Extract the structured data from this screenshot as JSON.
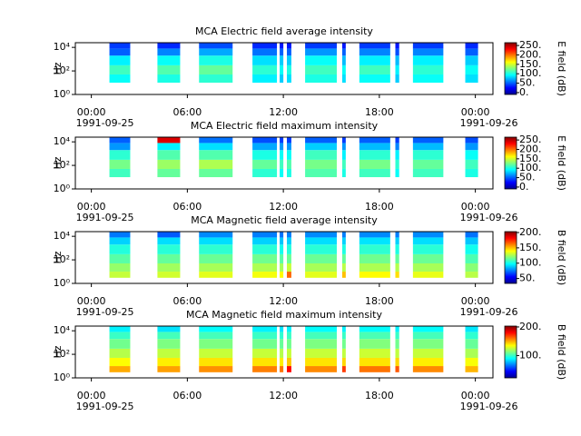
{
  "chart_data": [
    {
      "type": "spectrogram",
      "title": "MCA  Electric field average intensity",
      "ylabel": "Hz",
      "zlabel": "E field (dB)",
      "xlim": [
        -1,
        25.1
      ],
      "xticks": [
        {
          "value": 0,
          "label": "00:00"
        },
        {
          "value": 6,
          "label": "06:00"
        },
        {
          "value": 12,
          "label": "12:00"
        },
        {
          "value": 18,
          "label": "18:00"
        },
        {
          "value": 24,
          "label": "00:00"
        }
      ],
      "xdates": [
        {
          "value": 0,
          "label": "1991-09-25"
        },
        {
          "value": 24,
          "label": "1991-09-26"
        }
      ],
      "ylim": [
        1,
        25000
      ],
      "log_y": true,
      "yticks": [
        {
          "value": 1,
          "label": "10⁰"
        },
        {
          "value": 100,
          "label": "10²"
        },
        {
          "value": 10000,
          "label": "10⁴"
        }
      ],
      "zlim": [
        -10,
        265
      ],
      "zticks": [
        {
          "value": 0,
          "label": "0."
        },
        {
          "value": 50,
          "label": "50."
        },
        {
          "value": 100,
          "label": "100."
        },
        {
          "value": 150,
          "label": "150."
        },
        {
          "value": 200,
          "label": "200."
        },
        {
          "value": 250,
          "label": "250."
        }
      ],
      "colormap": "jet",
      "segments": [
        [
          1.13,
          2.43
        ],
        [
          4.13,
          5.55
        ],
        [
          6.73,
          8.83
        ],
        [
          10.07,
          11.6
        ],
        [
          11.77,
          12.0
        ],
        [
          12.22,
          12.5
        ],
        [
          13.36,
          15.34
        ],
        [
          15.68,
          15.9
        ],
        [
          16.75,
          18.68
        ],
        [
          19.0,
          19.24
        ],
        [
          20.1,
          22.0
        ],
        [
          23.37,
          24.17
        ]
      ],
      "y_bins": [
        3,
        10,
        50,
        300,
        2000,
        8000,
        25000
      ],
      "values": [
        [
          null,
          95,
          110,
          90,
          50,
          40
        ],
        [
          null,
          100,
          115,
          95,
          60,
          35
        ],
        [
          null,
          105,
          120,
          100,
          70,
          45
        ],
        [
          null,
          90,
          105,
          85,
          55,
          35
        ],
        [
          null,
          80,
          95,
          80,
          50,
          30
        ],
        [
          null,
          85,
          100,
          80,
          50,
          30
        ],
        [
          null,
          100,
          110,
          95,
          65,
          40
        ],
        [
          null,
          85,
          95,
          75,
          50,
          30
        ],
        [
          null,
          95,
          110,
          90,
          60,
          40
        ],
        [
          null,
          80,
          90,
          75,
          45,
          30
        ],
        [
          null,
          95,
          105,
          90,
          60,
          40
        ],
        [
          null,
          85,
          95,
          80,
          50,
          35
        ]
      ]
    },
    {
      "type": "spectrogram",
      "title": "MCA  Electric field maximum intensity",
      "ylabel": "Hz",
      "zlabel": "E field (dB)",
      "xlim": [
        -1,
        25.1
      ],
      "xticks": [
        {
          "value": 0,
          "label": "00:00"
        },
        {
          "value": 6,
          "label": "06:00"
        },
        {
          "value": 12,
          "label": "12:00"
        },
        {
          "value": 18,
          "label": "18:00"
        },
        {
          "value": 24,
          "label": "00:00"
        }
      ],
      "xdates": [
        {
          "value": 0,
          "label": "1991-09-25"
        },
        {
          "value": 24,
          "label": "1991-09-26"
        }
      ],
      "ylim": [
        1,
        25000
      ],
      "log_y": true,
      "yticks": [
        {
          "value": 1,
          "label": "10⁰"
        },
        {
          "value": 100,
          "label": "10²"
        },
        {
          "value": 10000,
          "label": "10⁴"
        }
      ],
      "zlim": [
        -10,
        265
      ],
      "zticks": [
        {
          "value": 0,
          "label": "0."
        },
        {
          "value": 50,
          "label": "50."
        },
        {
          "value": 100,
          "label": "100."
        },
        {
          "value": 150,
          "label": "150."
        },
        {
          "value": 200,
          "label": "200."
        },
        {
          "value": 250,
          "label": "250."
        }
      ],
      "colormap": "jet",
      "segments": [
        [
          1.13,
          2.43
        ],
        [
          4.13,
          5.55
        ],
        [
          6.73,
          8.83
        ],
        [
          10.07,
          11.6
        ],
        [
          11.77,
          12.0
        ],
        [
          12.22,
          12.5
        ],
        [
          13.36,
          15.34
        ],
        [
          15.68,
          15.9
        ],
        [
          16.75,
          18.68
        ],
        [
          19.0,
          19.24
        ],
        [
          20.1,
          22.0
        ],
        [
          23.37,
          24.17
        ]
      ],
      "y_bins": [
        3,
        10,
        50,
        300,
        2000,
        8000,
        25000
      ],
      "values": [
        [
          null,
          110,
          125,
          105,
          65,
          50
        ],
        [
          null,
          120,
          135,
          115,
          90,
          240
        ],
        [
          null,
          120,
          140,
          115,
          85,
          55
        ],
        [
          null,
          105,
          120,
          100,
          70,
          45
        ],
        [
          null,
          95,
          110,
          95,
          65,
          40
        ],
        [
          null,
          100,
          115,
          95,
          65,
          40
        ],
        [
          null,
          115,
          125,
          110,
          80,
          50
        ],
        [
          null,
          100,
          110,
          90,
          65,
          40
        ],
        [
          null,
          110,
          125,
          105,
          75,
          50
        ],
        [
          null,
          95,
          105,
          90,
          60,
          40
        ],
        [
          null,
          110,
          120,
          105,
          75,
          50
        ],
        [
          null,
          100,
          110,
          95,
          65,
          45
        ]
      ]
    },
    {
      "type": "spectrogram",
      "title": "MCA  Magnetic field average intensity",
      "ylabel": "Hz",
      "zlabel": "B field (dB)",
      "xlim": [
        -1,
        25.1
      ],
      "xticks": [
        {
          "value": 0,
          "label": "00:00"
        },
        {
          "value": 6,
          "label": "06:00"
        },
        {
          "value": 12,
          "label": "12:00"
        },
        {
          "value": 18,
          "label": "18:00"
        },
        {
          "value": 24,
          "label": "00:00"
        }
      ],
      "xdates": [
        {
          "value": 0,
          "label": "1991-09-25"
        },
        {
          "value": 24,
          "label": "1991-09-26"
        }
      ],
      "ylim": [
        1,
        25000
      ],
      "log_y": true,
      "yticks": [
        {
          "value": 1,
          "label": "10⁰"
        },
        {
          "value": 100,
          "label": "10²"
        },
        {
          "value": 10000,
          "label": "10⁴"
        }
      ],
      "zlim": [
        34,
        203
      ],
      "zticks": [
        {
          "value": 50,
          "label": "50."
        },
        {
          "value": 100,
          "label": "100."
        },
        {
          "value": 150,
          "label": "150."
        },
        {
          "value": 200,
          "label": "200."
        }
      ],
      "colormap": "jet",
      "segments": [
        [
          1.13,
          2.43
        ],
        [
          4.13,
          5.55
        ],
        [
          6.73,
          8.83
        ],
        [
          10.07,
          11.6
        ],
        [
          11.77,
          12.0
        ],
        [
          12.22,
          12.5
        ],
        [
          13.36,
          15.34
        ],
        [
          15.68,
          15.9
        ],
        [
          16.75,
          18.68
        ],
        [
          19.0,
          19.24
        ],
        [
          20.1,
          22.0
        ],
        [
          23.37,
          24.17
        ]
      ],
      "y_bins": [
        3,
        10,
        50,
        300,
        2000,
        8000,
        25000
      ],
      "values": [
        [
          130,
          122,
          112,
          103,
          90,
          75
        ],
        [
          132,
          124,
          114,
          104,
          92,
          70
        ],
        [
          135,
          125,
          115,
          105,
          92,
          78
        ],
        [
          138,
          126,
          116,
          104,
          90,
          76
        ],
        [
          140,
          125,
          112,
          100,
          88,
          74
        ],
        [
          165,
          130,
          115,
          103,
          90,
          76
        ],
        [
          135,
          125,
          115,
          104,
          92,
          78
        ],
        [
          150,
          128,
          114,
          102,
          90,
          76
        ],
        [
          140,
          126,
          116,
          105,
          93,
          78
        ],
        [
          145,
          127,
          114,
          102,
          90,
          76
        ],
        [
          136,
          125,
          115,
          104,
          92,
          78
        ],
        [
          128,
          120,
          110,
          100,
          88,
          74
        ]
      ]
    },
    {
      "type": "spectrogram",
      "title": "MCA  Magnetic field maximum intensity",
      "ylabel": "Hz",
      "zlabel": "B field (dB)",
      "xlim": [
        -1,
        25.1
      ],
      "xticks": [
        {
          "value": 0,
          "label": "00:00"
        },
        {
          "value": 6,
          "label": "06:00"
        },
        {
          "value": 12,
          "label": "12:00"
        },
        {
          "value": 18,
          "label": "18:00"
        },
        {
          "value": 24,
          "label": "00:00"
        }
      ],
      "xdates": [
        {
          "value": 0,
          "label": "1991-09-25"
        },
        {
          "value": 24,
          "label": "1991-09-26"
        }
      ],
      "ylim": [
        1,
        25000
      ],
      "log_y": true,
      "yticks": [
        {
          "value": 1,
          "label": "10⁰"
        },
        {
          "value": 100,
          "label": "10²"
        },
        {
          "value": 10000,
          "label": "10⁴"
        }
      ],
      "zlim": [
        22,
        203
      ],
      "zticks": [
        {
          "value": 100,
          "label": "100."
        },
        {
          "value": 200,
          "label": "200."
        }
      ],
      "colormap": "jet",
      "segments": [
        [
          1.13,
          2.43
        ],
        [
          4.13,
          5.55
        ],
        [
          6.73,
          8.83
        ],
        [
          10.07,
          11.6
        ],
        [
          11.77,
          12.0
        ],
        [
          12.22,
          12.5
        ],
        [
          13.36,
          15.34
        ],
        [
          15.68,
          15.9
        ],
        [
          16.75,
          18.68
        ],
        [
          19.0,
          19.24
        ],
        [
          20.1,
          22.0
        ],
        [
          23.37,
          24.17
        ]
      ],
      "y_bins": [
        3,
        10,
        50,
        300,
        2000,
        8000,
        25000
      ],
      "values": [
        [
          150,
          135,
          122,
          110,
          100,
          88
        ],
        [
          152,
          138,
          124,
          112,
          102,
          85
        ],
        [
          155,
          140,
          125,
          112,
          102,
          90
        ],
        [
          158,
          140,
          125,
          110,
          100,
          88
        ],
        [
          160,
          138,
          122,
          108,
          98,
          86
        ],
        [
          180,
          145,
          125,
          110,
          100,
          88
        ],
        [
          156,
          140,
          125,
          112,
          102,
          90
        ],
        [
          170,
          142,
          124,
          110,
          100,
          88
        ],
        [
          160,
          140,
          126,
          113,
          103,
          90
        ],
        [
          165,
          142,
          124,
          110,
          100,
          88
        ],
        [
          156,
          138,
          125,
          112,
          102,
          90
        ],
        [
          148,
          134,
          120,
          108,
          98,
          86
        ]
      ]
    }
  ]
}
